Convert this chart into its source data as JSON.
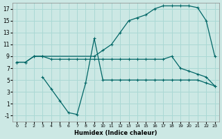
{
  "xlabel": "Humidex (Indice chaleur)",
  "bg_color": "#cce8e4",
  "grid_color": "#aad8d4",
  "line_color": "#006666",
  "xlim": [
    -0.5,
    23.5
  ],
  "ylim": [
    -2,
    18
  ],
  "xticks": [
    0,
    1,
    2,
    3,
    4,
    5,
    6,
    7,
    8,
    9,
    10,
    11,
    12,
    13,
    14,
    15,
    16,
    17,
    18,
    19,
    20,
    21,
    22,
    23
  ],
  "yticks": [
    -1,
    1,
    3,
    5,
    7,
    9,
    11,
    13,
    15,
    17
  ],
  "line1_x": [
    0,
    1,
    2,
    3,
    9,
    10,
    11,
    12,
    13,
    14,
    15,
    16,
    17,
    18,
    19,
    20,
    21,
    22,
    23
  ],
  "line1_y": [
    8.0,
    8.0,
    9.0,
    9.0,
    9.0,
    10.0,
    11.0,
    13.0,
    15.0,
    15.5,
    16.0,
    17.0,
    17.5,
    17.5,
    17.5,
    17.5,
    17.2,
    15.0,
    9.0
  ],
  "line2_x": [
    0,
    1,
    2,
    3,
    4,
    5,
    6,
    7,
    8,
    9,
    10,
    11,
    12,
    13,
    14,
    15,
    16,
    17,
    18,
    19,
    20,
    21,
    22,
    23
  ],
  "line2_y": [
    8.0,
    8.0,
    9.0,
    9.0,
    8.5,
    8.5,
    8.5,
    8.5,
    8.5,
    8.5,
    8.5,
    8.5,
    8.5,
    8.5,
    8.5,
    8.5,
    8.5,
    8.5,
    9.0,
    7.0,
    6.5,
    6.0,
    5.5,
    4.0
  ],
  "line3_x": [
    3,
    4,
    5,
    6,
    7,
    8,
    9,
    10,
    11,
    12,
    13,
    14,
    15,
    16,
    17,
    18,
    19,
    20,
    21,
    22,
    23
  ],
  "line3_y": [
    5.5,
    3.5,
    1.5,
    -0.5,
    -0.8,
    4.5,
    12.0,
    5.0,
    5.0,
    5.0,
    5.0,
    5.0,
    5.0,
    5.0,
    5.0,
    5.0,
    5.0,
    5.0,
    5.0,
    4.5,
    4.0
  ],
  "marker": "+"
}
